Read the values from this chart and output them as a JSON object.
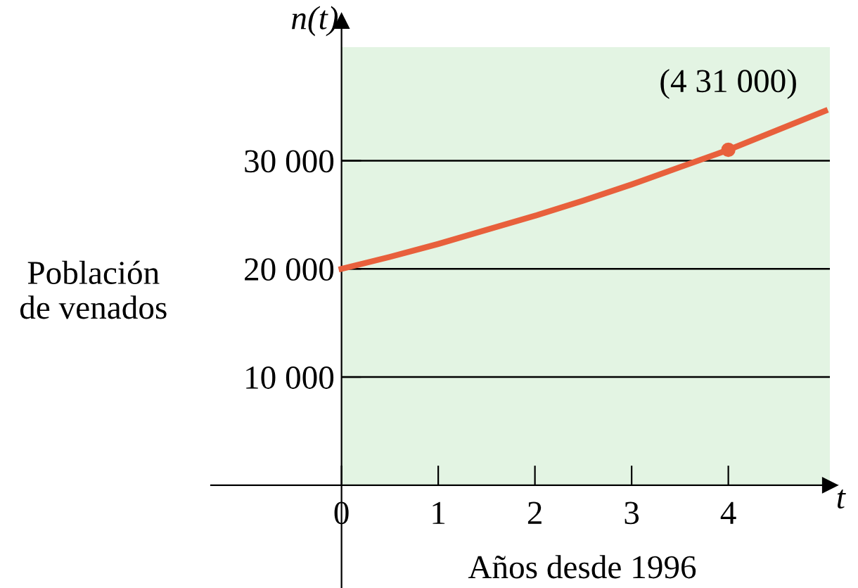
{
  "chart_data": {
    "type": "line",
    "xlabel": "Años desde 1996",
    "ylabel": "Población\nde venados",
    "annotations": [
      {
        "text": "(4 31 000)",
        "x": 4,
        "y": 31000
      },
      "n(t)",
      "t"
    ],
    "x": [
      0,
      0.5,
      1,
      1.5,
      2,
      2.5,
      3,
      3.5,
      4,
      4.5,
      5
    ],
    "series": [
      {
        "type": "line",
        "color": "#e8603c",
        "values": [
          20000,
          21100,
          22300,
          23600,
          24900,
          26300,
          27800,
          29400,
          31000,
          32800,
          34600
        ]
      },
      {
        "type": "scatter",
        "x": [
          4
        ],
        "color": "#e8603c",
        "marker": "circle",
        "values": [
          31000
        ]
      }
    ],
    "bands": [
      {
        "axis": "y",
        "from": 0,
        "to": 40500,
        "color": "#e3f4e3"
      }
    ],
    "xlim": [
      -1.35,
      5.05
    ],
    "ylim": [
      -9500,
      42900
    ],
    "xticks": [
      0,
      1,
      2,
      3,
      4
    ],
    "yticks": [
      {
        "value": 10000,
        "label": "10 000"
      },
      {
        "value": 20000,
        "label": "20 000"
      },
      {
        "value": 30000,
        "label": "30 000"
      }
    ],
    "grid": "y",
    "legend": false
  }
}
